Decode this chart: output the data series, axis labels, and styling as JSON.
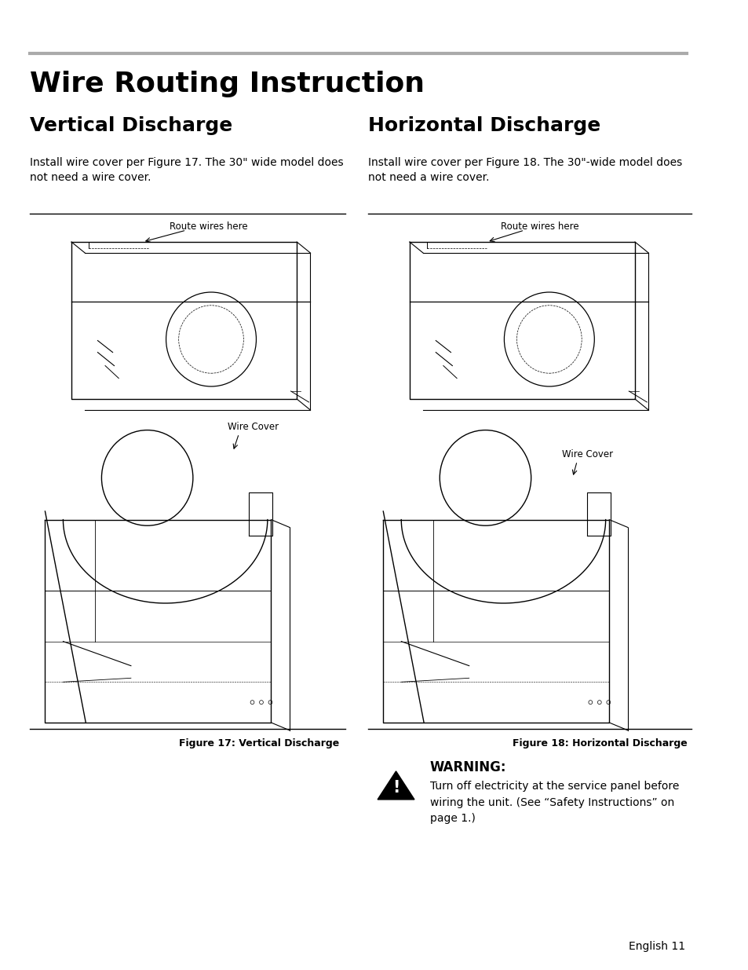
{
  "page_title": "Wire Routing Instruction",
  "left_section_title": "Vertical Discharge",
  "right_section_title": "Horizontal Discharge",
  "left_body_text": "Install wire cover per Figure 17. The 30\" wide model does\nnot need a wire cover.",
  "right_body_text": "Install wire cover per Figure 18. The 30\"-wide model does\nnot need a wire cover.",
  "fig17_caption": "Figure 17: Vertical Discharge",
  "fig18_caption": "Figure 18: Horizontal Discharge",
  "route_wires_label": "Route wires here",
  "wire_cover_label": "Wire Cover",
  "warning_title": "WARNING:",
  "warning_text": "Turn off electricity at the service panel before\nwiring the unit. (See “Safety Instructions” on\npage 1.)",
  "footer_text": "English 11",
  "bg_color": "#ffffff",
  "text_color": "#000000",
  "divider_color": "#aaaaaa",
  "title_fontsize": 26,
  "section_title_fontsize": 18,
  "body_fontsize": 10,
  "caption_fontsize": 9,
  "warning_title_fontsize": 12,
  "warning_text_fontsize": 10,
  "footer_fontsize": 10
}
